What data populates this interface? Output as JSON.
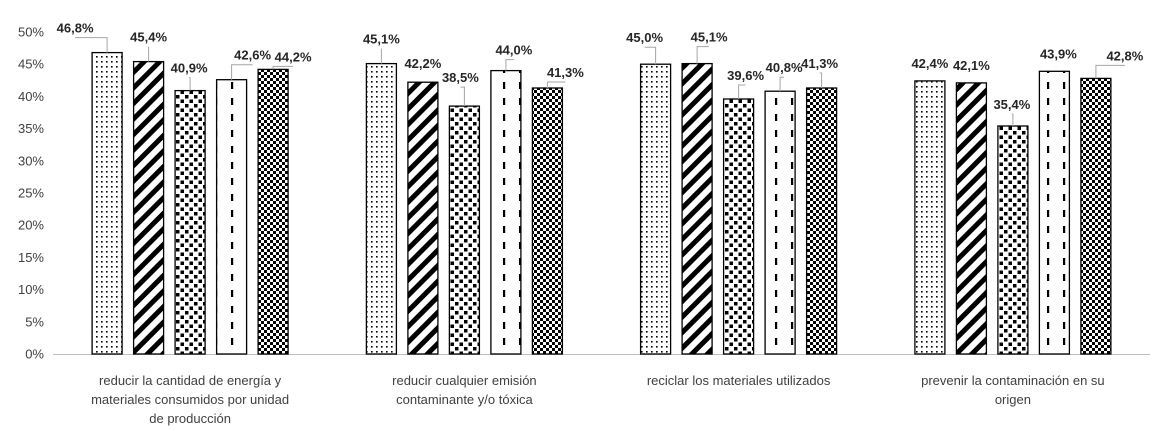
{
  "chart_data": {
    "type": "bar",
    "categories": [
      [
        "reducir la cantidad de energía y",
        "materiales consumidos por unidad",
        "de producción"
      ],
      [
        "reducir cualquier emisión",
        "contaminante y/o tóxica"
      ],
      [
        "reciclar los materiales utilizados"
      ],
      [
        "prevenir la contaminación en su",
        "origen"
      ]
    ],
    "series": [
      {
        "pattern": "dots",
        "values": [
          46.8,
          45.1,
          45.0,
          42.4
        ]
      },
      {
        "pattern": "diagonal-stripes",
        "values": [
          45.4,
          42.2,
          45.1,
          42.1
        ]
      },
      {
        "pattern": "squares",
        "values": [
          40.9,
          38.5,
          39.6,
          35.4
        ]
      },
      {
        "pattern": "dashes",
        "values": [
          42.6,
          44.0,
          40.8,
          43.9
        ]
      },
      {
        "pattern": "checker",
        "values": [
          44.2,
          41.3,
          41.3,
          42.8
        ]
      }
    ],
    "data_labels": [
      [
        "46,8%",
        "45,4%",
        "40,9%",
        "42,6%",
        "44,2%"
      ],
      [
        "45,1%",
        "42,2%",
        "38,5%",
        "44,0%",
        "41,3%"
      ],
      [
        "45,0%",
        "45,1%",
        "39,6%",
        "40,8%",
        "41,3%"
      ],
      [
        "42,4%",
        "42,1%",
        "35,4%",
        "43,9%",
        "42,8%"
      ]
    ],
    "y_ticks": [
      "0%",
      "5%",
      "10%",
      "15%",
      "20%",
      "25%",
      "30%",
      "35%",
      "40%",
      "45%",
      "50%"
    ],
    "ylim": [
      0,
      50
    ],
    "title": "",
    "xlabel": "",
    "ylabel": "",
    "grid": false,
    "legend": "none",
    "colors": {
      "bar_stroke": "#000000",
      "fill": "#ffffff",
      "axis": "#bfbfbf",
      "leader": "#a6a6a6"
    }
  }
}
